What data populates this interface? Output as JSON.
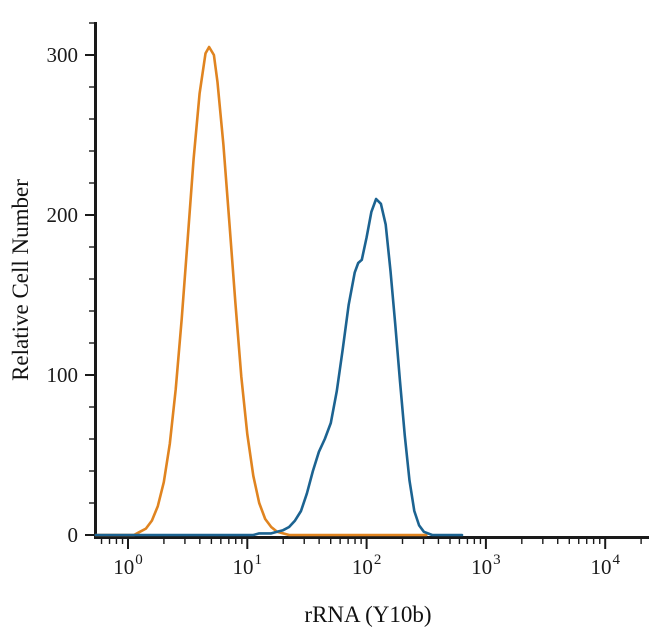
{
  "chart_data": {
    "type": "line",
    "title": "",
    "xlabel": "rRNA (Y10b)",
    "ylabel": "Relative Cell Number",
    "x_scale": "log10",
    "x_tick_base": "10",
    "x_tick_exponents": [
      0,
      1,
      2,
      3,
      4
    ],
    "xlim_log": [
      -0.275,
      4.33
    ],
    "y_ticks": [
      0,
      100,
      200,
      300
    ],
    "y_minor_step": 20,
    "ylim": [
      0,
      320
    ],
    "grid": false,
    "legend": "none",
    "axis_color": "#1a1a1a",
    "series": [
      {
        "id": "orange-curve",
        "color": "#E08420",
        "stroke_width": 2.6,
        "peak": {
          "x_log": 0.68,
          "y": 305
        },
        "x_log": [
          -0.27,
          0.05,
          0.1,
          0.15,
          0.2,
          0.25,
          0.3,
          0.35,
          0.4,
          0.45,
          0.5,
          0.55,
          0.6,
          0.65,
          0.68,
          0.72,
          0.75,
          0.8,
          0.85,
          0.9,
          0.95,
          1.0,
          1.05,
          1.1,
          1.15,
          1.2,
          1.25,
          1.3,
          1.35,
          1.6,
          2.0,
          2.5
        ],
        "y": [
          0,
          0,
          2,
          4,
          9,
          18,
          33,
          57,
          91,
          135,
          185,
          235,
          276,
          301,
          305,
          300,
          283,
          244,
          195,
          145,
          99,
          63,
          37,
          20,
          10,
          5,
          2,
          1,
          0,
          0,
          0,
          0
        ]
      },
      {
        "id": "blue-curve",
        "color": "#1C6391",
        "stroke_width": 2.6,
        "peak": {
          "x_log": 2.08,
          "y": 210
        },
        "x_log": [
          -0.27,
          0.4,
          1.05,
          1.1,
          1.15,
          1.2,
          1.25,
          1.3,
          1.35,
          1.4,
          1.45,
          1.5,
          1.55,
          1.6,
          1.65,
          1.7,
          1.75,
          1.8,
          1.85,
          1.9,
          1.93,
          1.96,
          2.0,
          2.04,
          2.08,
          2.12,
          2.16,
          2.2,
          2.24,
          2.28,
          2.32,
          2.36,
          2.4,
          2.44,
          2.48,
          2.55,
          2.8
        ],
        "y": [
          0,
          0,
          0,
          1,
          1,
          1,
          2,
          3,
          5,
          9,
          15,
          26,
          40,
          52,
          60,
          70,
          90,
          116,
          144,
          164,
          170,
          172,
          186,
          202,
          210,
          207,
          194,
          165,
          132,
          96,
          62,
          34,
          15,
          6,
          2,
          0,
          0
        ]
      }
    ]
  }
}
